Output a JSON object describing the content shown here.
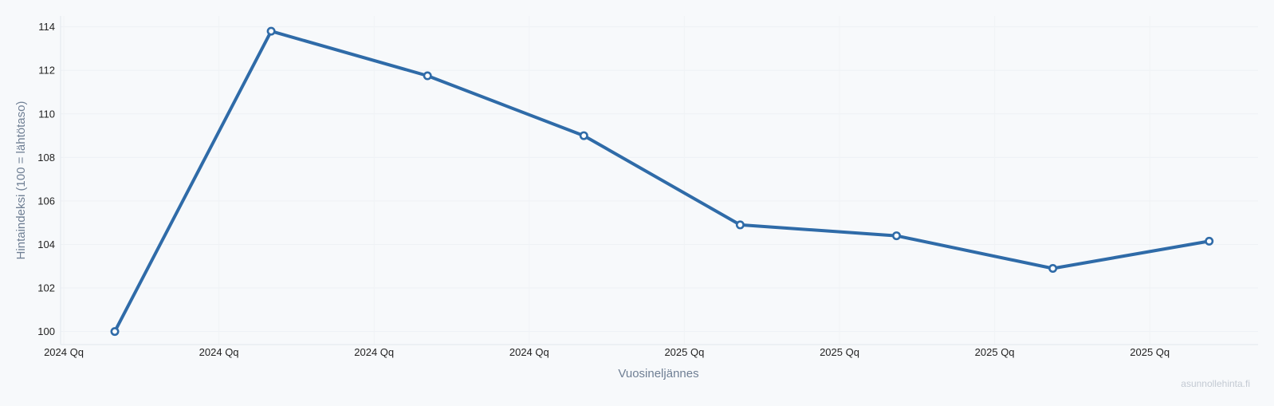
{
  "chart_data": {
    "type": "line",
    "title": "",
    "xlabel": "Vuosineljännes",
    "ylabel": "Hintaindeksi (100 = lähtötaso)",
    "ylim": [
      99.4,
      114.5
    ],
    "yticks": [
      100,
      102,
      104,
      106,
      108,
      110,
      112,
      114
    ],
    "x_tick_labels": [
      "2024 Qq",
      "2024 Qq",
      "2024 Qq",
      "2024 Qq",
      "2025 Qq",
      "2025 Qq",
      "2025 Qq",
      "2025 Qq"
    ],
    "grid": true,
    "legend": "none",
    "series": [
      {
        "color": "#2f6ba8",
        "values": [
          100.0,
          113.8,
          111.75,
          109.0,
          104.9,
          104.4,
          102.9,
          104.15
        ]
      }
    ]
  },
  "watermark": "asunnollehinta.fi"
}
